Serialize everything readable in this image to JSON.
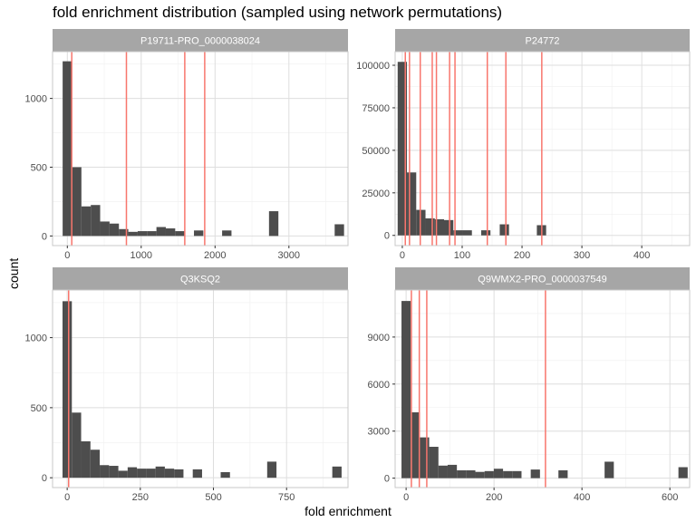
{
  "chart_title": "fold enrichment distribution (sampled using network permutations)",
  "y_label": "count",
  "x_label": "fold enrichment",
  "colors": {
    "bar": "#4d4d4d",
    "vline": "#f8766d",
    "strip": "#a6a6a6",
    "grid_major": "#dedede",
    "grid_minor": "#efefef",
    "panel_border": "#c8c8c8"
  },
  "chart_data": [
    {
      "type": "bar",
      "panel": "P19711-PRO_0000038024",
      "xlim": [
        -200,
        3800
      ],
      "ylim": [
        -70,
        1340
      ],
      "xticks": [
        0,
        1000,
        2000,
        3000
      ],
      "xtick_labels": [
        "0",
        "1000",
        "2000",
        "3000"
      ],
      "yticks": [
        0,
        500,
        1000
      ],
      "ytick_labels": [
        "0",
        "500",
        "1000"
      ],
      "bin_width": 127,
      "bins": [
        {
          "x": 0,
          "count": 1270
        },
        {
          "x": 127,
          "count": 500
        },
        {
          "x": 254,
          "count": 215
        },
        {
          "x": 381,
          "count": 225
        },
        {
          "x": 508,
          "count": 105
        },
        {
          "x": 635,
          "count": 90
        },
        {
          "x": 762,
          "count": 50
        },
        {
          "x": 889,
          "count": 30
        },
        {
          "x": 1016,
          "count": 35
        },
        {
          "x": 1143,
          "count": 35
        },
        {
          "x": 1270,
          "count": 65
        },
        {
          "x": 1397,
          "count": 55
        },
        {
          "x": 1524,
          "count": 35
        },
        {
          "x": 1778,
          "count": 40
        },
        {
          "x": 2159,
          "count": 40
        },
        {
          "x": 2794,
          "count": 180
        },
        {
          "x": 3683,
          "count": 85
        }
      ],
      "vlines": [
        60,
        800,
        1590,
        1860
      ]
    },
    {
      "type": "bar",
      "panel": "P24772",
      "xlim": [
        -12,
        480
      ],
      "ylim": [
        -6000,
        108000
      ],
      "xticks": [
        0,
        100,
        200,
        300,
        400
      ],
      "xtick_labels": [
        "0",
        "100",
        "200",
        "300",
        "400"
      ],
      "yticks": [
        0,
        25000,
        50000,
        75000,
        100000
      ],
      "ytick_labels": [
        "0",
        "25000",
        "50000",
        "75000",
        "100000"
      ],
      "bin_width": 15.5,
      "bins": [
        {
          "x": 0,
          "count": 102000
        },
        {
          "x": 15.5,
          "count": 37000
        },
        {
          "x": 31,
          "count": 15000
        },
        {
          "x": 46.5,
          "count": 10000
        },
        {
          "x": 62,
          "count": 9500
        },
        {
          "x": 77.5,
          "count": 9000
        },
        {
          "x": 93,
          "count": 3000
        },
        {
          "x": 108.5,
          "count": 3000
        },
        {
          "x": 139.5,
          "count": 3000
        },
        {
          "x": 170.5,
          "count": 6500
        },
        {
          "x": 232.5,
          "count": 6000
        }
      ],
      "vlines": [
        5,
        12,
        30,
        50,
        57,
        79,
        88,
        142,
        173,
        233
      ]
    },
    {
      "type": "bar",
      "panel": "Q3KSQ2",
      "xlim": [
        -50,
        960
      ],
      "ylim": [
        -70,
        1340
      ],
      "xticks": [
        0,
        250,
        500,
        750
      ],
      "xtick_labels": [
        "0",
        "250",
        "500",
        "750"
      ],
      "yticks": [
        0,
        500,
        1000
      ],
      "ytick_labels": [
        "0",
        "500",
        "1000"
      ],
      "bin_width": 31.8,
      "bins": [
        {
          "x": 0,
          "count": 1260
        },
        {
          "x": 31.8,
          "count": 465
        },
        {
          "x": 63.6,
          "count": 260
        },
        {
          "x": 95.4,
          "count": 200
        },
        {
          "x": 127.2,
          "count": 90
        },
        {
          "x": 159,
          "count": 85
        },
        {
          "x": 190.8,
          "count": 50
        },
        {
          "x": 222.6,
          "count": 75
        },
        {
          "x": 254.4,
          "count": 65
        },
        {
          "x": 286.2,
          "count": 65
        },
        {
          "x": 318,
          "count": 80
        },
        {
          "x": 349.8,
          "count": 65
        },
        {
          "x": 381.6,
          "count": 60
        },
        {
          "x": 445.2,
          "count": 60
        },
        {
          "x": 540.6,
          "count": 40
        },
        {
          "x": 699.6,
          "count": 115
        },
        {
          "x": 922.2,
          "count": 80
        }
      ],
      "vlines": [
        5
      ]
    },
    {
      "type": "bar",
      "panel": "Q9WMX2-PRO_0000037549",
      "xlim": [
        -25,
        645
      ],
      "ylim": [
        -600,
        12000
      ],
      "xticks": [
        0,
        200,
        400,
        600
      ],
      "xtick_labels": [
        "0",
        "200",
        "400",
        "600"
      ],
      "yticks": [
        0,
        3000,
        6000,
        9000
      ],
      "ytick_labels": [
        "0",
        "3000",
        "6000",
        "9000"
      ],
      "bin_width": 21,
      "bins": [
        {
          "x": 0,
          "count": 11300
        },
        {
          "x": 21,
          "count": 4200
        },
        {
          "x": 42,
          "count": 2600
        },
        {
          "x": 63,
          "count": 2000
        },
        {
          "x": 84,
          "count": 800
        },
        {
          "x": 105,
          "count": 850
        },
        {
          "x": 126,
          "count": 500
        },
        {
          "x": 147,
          "count": 500
        },
        {
          "x": 168,
          "count": 400
        },
        {
          "x": 189,
          "count": 450
        },
        {
          "x": 210,
          "count": 600
        },
        {
          "x": 231,
          "count": 450
        },
        {
          "x": 252,
          "count": 450
        },
        {
          "x": 294,
          "count": 550
        },
        {
          "x": 357,
          "count": 500
        },
        {
          "x": 462,
          "count": 1050
        },
        {
          "x": 630,
          "count": 700
        }
      ],
      "vlines": [
        12,
        30,
        47,
        317
      ]
    }
  ]
}
